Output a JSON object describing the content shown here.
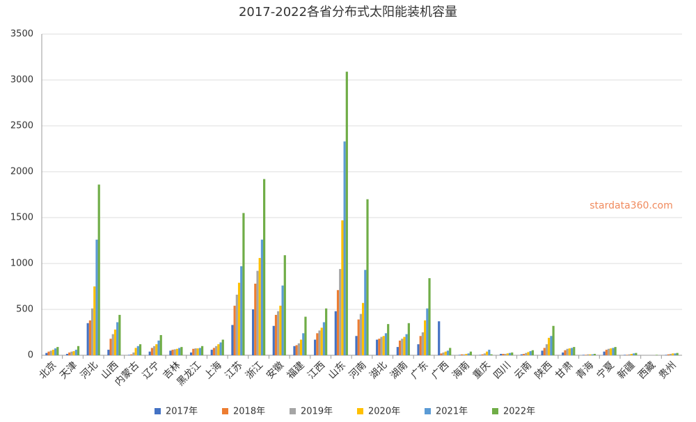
{
  "chart_data": {
    "type": "bar",
    "title": "2017-2022各省分布式太阳能装机容量",
    "watermark": "stardata360.com",
    "categories": [
      "北京",
      "天津",
      "河北",
      "山西",
      "内蒙古",
      "辽宁",
      "吉林",
      "黑龙江",
      "上海",
      "江苏",
      "浙江",
      "安徽",
      "福建",
      "江西",
      "山东",
      "河南",
      "湖北",
      "湖南",
      "广东",
      "广西",
      "海南",
      "重庆",
      "四川",
      "云南",
      "陕西",
      "甘肃",
      "青海",
      "宁夏",
      "新疆",
      "西藏",
      "贵州"
    ],
    "series": [
      {
        "name": "2017年",
        "color": "#4472c4",
        "values": [
          25,
          15,
          350,
          60,
          5,
          40,
          50,
          30,
          60,
          330,
          500,
          320,
          100,
          170,
          480,
          210,
          170,
          90,
          120,
          370,
          5,
          5,
          15,
          10,
          50,
          30,
          5,
          40,
          5,
          0,
          5
        ]
      },
      {
        "name": "2018年",
        "color": "#ed7d31",
        "values": [
          40,
          30,
          380,
          180,
          10,
          80,
          60,
          70,
          80,
          540,
          780,
          440,
          110,
          240,
          710,
          390,
          180,
          160,
          210,
          20,
          10,
          10,
          15,
          15,
          80,
          55,
          5,
          60,
          5,
          0,
          10
        ]
      },
      {
        "name": "2019年",
        "color": "#a5a5a5",
        "values": [
          50,
          40,
          510,
          230,
          30,
          100,
          65,
          75,
          100,
          660,
          920,
          480,
          130,
          270,
          940,
          450,
          200,
          180,
          250,
          30,
          10,
          20,
          15,
          25,
          120,
          70,
          10,
          70,
          10,
          0,
          15
        ]
      },
      {
        "name": "2020年",
        "color": "#ffc000",
        "values": [
          60,
          45,
          750,
          280,
          80,
          120,
          70,
          75,
          120,
          790,
          1060,
          540,
          170,
          300,
          1470,
          570,
          210,
          200,
          380,
          40,
          15,
          40,
          20,
          35,
          190,
          75,
          10,
          75,
          15,
          0,
          20
        ]
      },
      {
        "name": "2021年",
        "color": "#5b9bd5",
        "values": [
          75,
          60,
          1260,
          360,
          100,
          160,
          80,
          80,
          140,
          970,
          1260,
          760,
          240,
          360,
          2330,
          930,
          240,
          230,
          510,
          50,
          20,
          60,
          25,
          45,
          210,
          80,
          10,
          80,
          20,
          0,
          20
        ]
      },
      {
        "name": "2022年",
        "color": "#70ad47",
        "values": [
          90,
          100,
          1860,
          440,
          120,
          220,
          90,
          100,
          170,
          1550,
          1920,
          1090,
          420,
          510,
          3090,
          1700,
          340,
          350,
          840,
          80,
          40,
          10,
          30,
          55,
          320,
          90,
          15,
          90,
          25,
          5,
          25
        ]
      }
    ],
    "ylim": [
      0,
      3500
    ],
    "yticks": [
      0,
      500,
      1000,
      1500,
      2000,
      2500,
      3000,
      3500
    ],
    "grid": true
  }
}
